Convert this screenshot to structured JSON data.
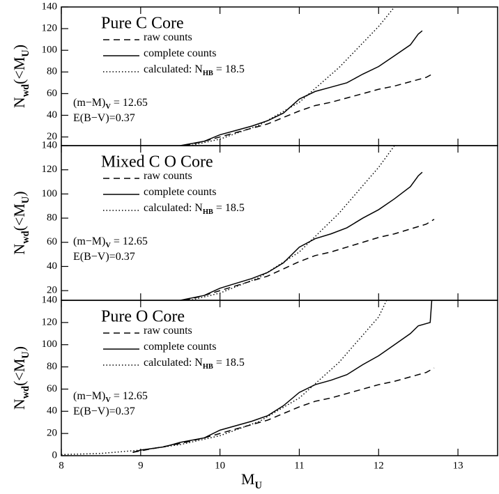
{
  "chart_data": [
    {
      "type": "line",
      "title": "Pure C Core",
      "ylabel": [
        "N",
        "wd",
        "(<M",
        "U",
        ")"
      ],
      "annotations": [
        [
          "(m−M)",
          "V",
          " = 12.65"
        ],
        [
          "E(B−V)=0.37"
        ]
      ],
      "xlim": [
        8,
        13.5
      ],
      "xticks": [
        8,
        9,
        10,
        11,
        12,
        13
      ],
      "ylim": [
        12,
        140
      ],
      "yticks": [
        20,
        40,
        60,
        80,
        100,
        120,
        140
      ],
      "series": [
        {
          "name": [
            "raw counts"
          ],
          "style": "dashed",
          "color": "#000000",
          "x": [
            8.9,
            9.2,
            9.5,
            9.8,
            10.0,
            10.2,
            10.4,
            10.6,
            10.8,
            11.0,
            11.2,
            11.4,
            11.6,
            11.8,
            12.0,
            12.2,
            12.4,
            12.6,
            12.7
          ],
          "values": [
            3,
            7,
            11,
            16,
            20,
            24,
            28,
            32,
            38,
            44,
            49,
            52,
            56,
            60,
            64,
            67,
            71,
            75,
            79
          ]
        },
        {
          "name": [
            "complete counts"
          ],
          "style": "solid",
          "color": "#000000",
          "x": [
            8.9,
            9.0,
            9.3,
            9.5,
            9.8,
            10.0,
            10.2,
            10.4,
            10.6,
            10.8,
            11.0,
            11.2,
            11.4,
            11.6,
            11.8,
            12.0,
            12.2,
            12.4,
            12.5,
            12.55
          ],
          "values": [
            3,
            5,
            8,
            12,
            16,
            22,
            26,
            30,
            35,
            42,
            55,
            62,
            66,
            70,
            78,
            85,
            95,
            105,
            115,
            118
          ]
        },
        {
          "name": [
            "calculated: N",
            "HB",
            " = 18.5"
          ],
          "style": "dotted",
          "color": "#000000",
          "x": [
            8.0,
            8.5,
            9.0,
            9.5,
            10.0,
            10.5,
            11.0,
            11.5,
            12.0,
            12.2
          ],
          "values": [
            1,
            2,
            5,
            10,
            18,
            31,
            52,
            84,
            122,
            140
          ]
        }
      ]
    },
    {
      "type": "line",
      "title": "Mixed C O Core",
      "ylabel": [
        "N",
        "wd",
        "(<M",
        "U",
        ")"
      ],
      "annotations": [
        [
          "(m−M)",
          "V",
          " = 12.65"
        ],
        [
          "E(B−V)=0.37"
        ]
      ],
      "xlim": [
        8,
        13.5
      ],
      "xticks": [
        8,
        9,
        10,
        11,
        12,
        13
      ],
      "ylim": [
        12,
        140
      ],
      "yticks": [
        20,
        40,
        60,
        80,
        100,
        120,
        140
      ],
      "series": [
        {
          "name": [
            "raw counts"
          ],
          "style": "dashed",
          "color": "#000000",
          "x": [
            8.9,
            9.2,
            9.5,
            9.8,
            10.0,
            10.2,
            10.4,
            10.6,
            10.8,
            11.0,
            11.2,
            11.4,
            11.6,
            11.8,
            12.0,
            12.2,
            12.4,
            12.6,
            12.7
          ],
          "values": [
            3,
            7,
            11,
            16,
            20,
            24,
            28,
            32,
            38,
            44,
            49,
            52,
            56,
            60,
            64,
            67,
            71,
            75,
            79
          ]
        },
        {
          "name": [
            "complete counts"
          ],
          "style": "solid",
          "color": "#000000",
          "x": [
            8.9,
            9.0,
            9.3,
            9.5,
            9.8,
            10.0,
            10.2,
            10.4,
            10.6,
            10.8,
            11.0,
            11.2,
            11.4,
            11.6,
            11.8,
            12.0,
            12.2,
            12.4,
            12.5,
            12.55
          ],
          "values": [
            3,
            5,
            8,
            12,
            16,
            22,
            26,
            30,
            35,
            43,
            56,
            63,
            67,
            72,
            80,
            87,
            96,
            106,
            115,
            118
          ]
        },
        {
          "name": [
            "calculated: N",
            "HB",
            " = 18.5"
          ],
          "style": "dotted",
          "color": "#000000",
          "x": [
            8.0,
            8.5,
            9.0,
            9.5,
            10.0,
            10.5,
            11.0,
            11.5,
            12.0,
            12.2
          ],
          "values": [
            1,
            2,
            5,
            10,
            18,
            31,
            52,
            84,
            122,
            140
          ]
        }
      ]
    },
    {
      "type": "line",
      "title": "Pure O Core",
      "ylabel": [
        "N",
        "wd",
        "(<M",
        "U",
        ")"
      ],
      "xlabel": [
        "M",
        "U"
      ],
      "annotations": [
        [
          "(m−M)",
          "V",
          " = 12.65"
        ],
        [
          "E(B−V)=0.37"
        ]
      ],
      "xlim": [
        8,
        13.5
      ],
      "xticks": [
        8,
        9,
        10,
        11,
        12,
        13
      ],
      "ylim": [
        0,
        140
      ],
      "yticks": [
        0,
        20,
        40,
        60,
        80,
        100,
        120,
        140
      ],
      "series": [
        {
          "name": [
            "raw counts"
          ],
          "style": "dashed",
          "color": "#000000",
          "x": [
            8.9,
            9.2,
            9.5,
            9.8,
            10.0,
            10.2,
            10.4,
            10.6,
            10.8,
            11.0,
            11.2,
            11.4,
            11.6,
            11.8,
            12.0,
            12.2,
            12.4,
            12.6,
            12.7
          ],
          "values": [
            3,
            7,
            11,
            16,
            20,
            24,
            28,
            32,
            38,
            44,
            49,
            52,
            56,
            60,
            64,
            67,
            71,
            75,
            79
          ]
        },
        {
          "name": [
            "complete counts"
          ],
          "style": "solid",
          "color": "#000000",
          "x": [
            8.9,
            9.0,
            9.3,
            9.5,
            9.8,
            10.0,
            10.2,
            10.4,
            10.6,
            10.8,
            11.0,
            11.2,
            11.4,
            11.6,
            11.8,
            12.0,
            12.2,
            12.4,
            12.5,
            12.65,
            12.67
          ],
          "values": [
            3,
            5,
            8,
            12,
            16,
            23,
            27,
            31,
            36,
            45,
            57,
            64,
            68,
            73,
            82,
            90,
            100,
            110,
            117,
            120,
            140
          ]
        },
        {
          "name": [
            "calculated: N",
            "HB",
            " = 18.5"
          ],
          "style": "dotted",
          "color": "#000000",
          "x": [
            8.0,
            8.5,
            9.0,
            9.5,
            10.0,
            10.5,
            11.0,
            11.5,
            12.0,
            12.1
          ],
          "values": [
            1,
            2,
            5,
            10,
            18,
            31,
            52,
            84,
            125,
            140
          ]
        }
      ]
    }
  ]
}
